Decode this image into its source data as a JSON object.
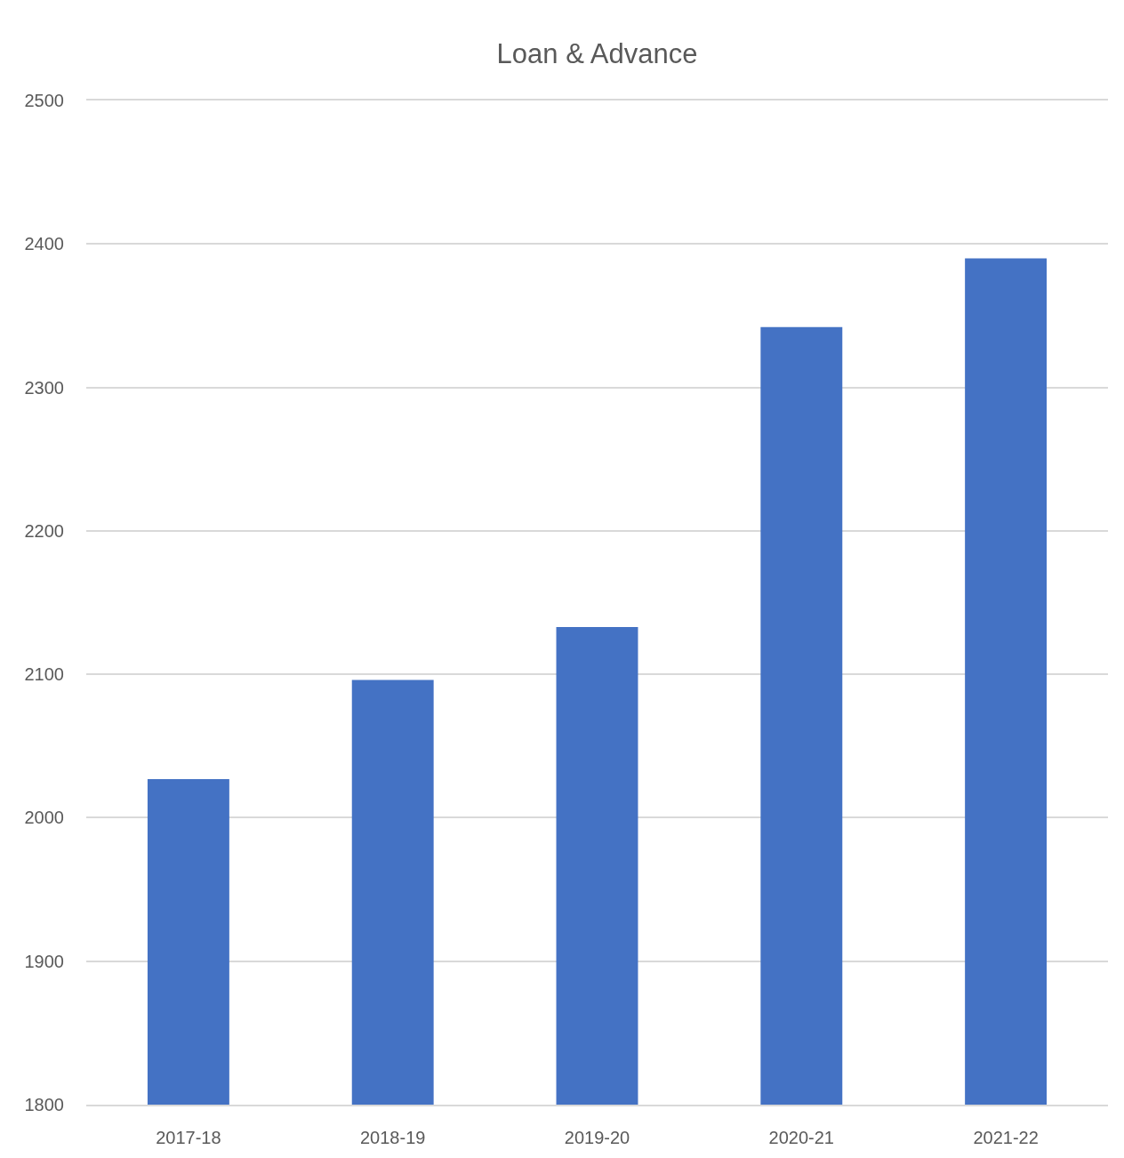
{
  "chart_data": {
    "type": "bar",
    "title": "Loan & Advance",
    "categories": [
      "2017-18",
      "2018-19",
      "2019-20",
      "2020-21",
      "2021-22"
    ],
    "values": [
      2027,
      2096,
      2133,
      2342,
      2390
    ],
    "color": "#4472c4",
    "ylim": [
      1800,
      2500
    ],
    "yticks": [
      1800,
      1900,
      2000,
      2100,
      2200,
      2300,
      2400,
      2500
    ],
    "grid": "y"
  }
}
